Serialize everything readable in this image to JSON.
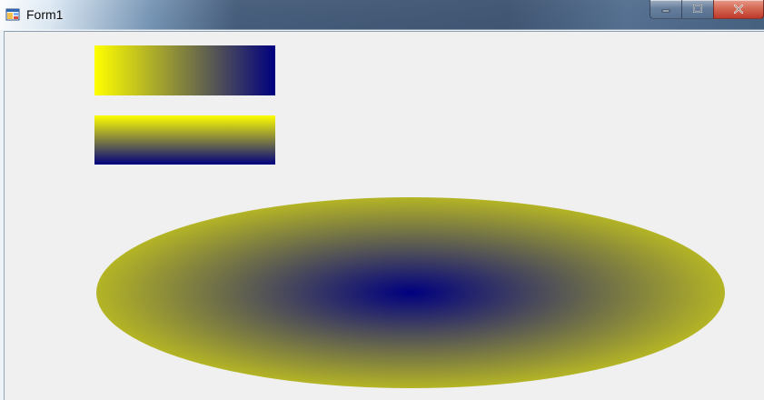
{
  "window": {
    "title": "Form1",
    "icons": {
      "app": "windows-form-icon",
      "minimize": "minimize-icon",
      "maximize": "maximize-icon",
      "close": "close-icon"
    },
    "colors": {
      "gradient_start": "#FFFF00",
      "gradient_end": "#000080",
      "client_background": "#F0F0F0"
    }
  }
}
